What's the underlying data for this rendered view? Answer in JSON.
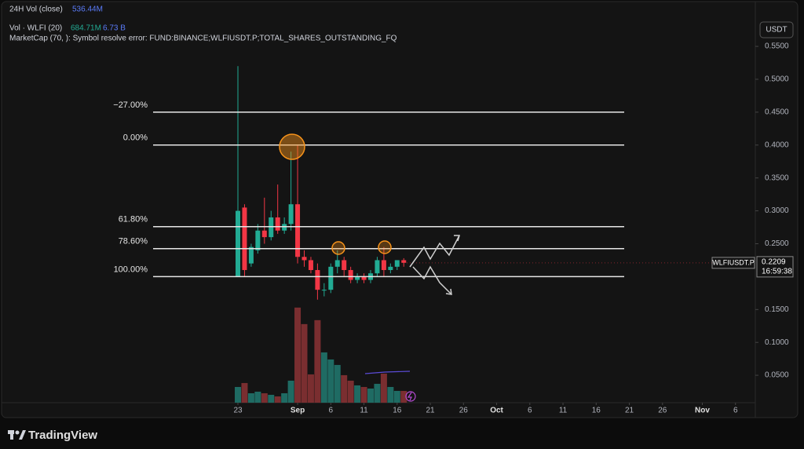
{
  "chart_data": {
    "type": "candlestick",
    "symbol_label": "WLFIUSDT.P",
    "currency_button": "USDT",
    "legend": {
      "vol24_label": "24H Vol (close)",
      "vol24_value": "536.44M",
      "vol_label": "Vol · WLFI (20)",
      "vol_value": "684.71M",
      "vol_ma_value": "6.73 B",
      "marketcap_error": "MarketCap (70, ): Symbol resolve error: FUND:BINANCE;WLFIUSDT.P;TOTAL_SHARES_OUTSTANDING_FQ"
    },
    "brand": "TradingView",
    "last_price": 0.2209,
    "countdown": "16:59:38",
    "x": [
      0,
      1,
      2,
      3,
      4,
      5,
      6,
      7,
      8,
      9,
      10,
      11,
      12,
      13,
      14,
      15,
      16,
      17,
      18,
      19,
      20,
      21,
      22,
      23,
      24,
      25
    ],
    "open": [
      0.2,
      0.305,
      0.22,
      0.24,
      0.27,
      0.26,
      0.29,
      0.27,
      0.28,
      0.31,
      0.23,
      0.225,
      0.21,
      0.18,
      0.18,
      0.215,
      0.225,
      0.21,
      0.195,
      0.2,
      0.195,
      0.205,
      0.225,
      0.21,
      0.215,
      0.225
    ],
    "high": [
      0.52,
      0.31,
      0.25,
      0.28,
      0.32,
      0.3,
      0.34,
      0.29,
      0.39,
      0.4,
      0.24,
      0.23,
      0.22,
      0.19,
      0.22,
      0.24,
      0.23,
      0.215,
      0.205,
      0.205,
      0.21,
      0.23,
      0.245,
      0.22,
      0.225,
      0.228
    ],
    "low": [
      0.2,
      0.2,
      0.215,
      0.235,
      0.25,
      0.255,
      0.265,
      0.265,
      0.27,
      0.22,
      0.215,
      0.205,
      0.165,
      0.17,
      0.175,
      0.205,
      0.2,
      0.19,
      0.19,
      0.19,
      0.19,
      0.2,
      0.2,
      0.205,
      0.21,
      0.215
    ],
    "close": [
      0.3,
      0.21,
      0.245,
      0.27,
      0.26,
      0.29,
      0.27,
      0.28,
      0.31,
      0.23,
      0.225,
      0.21,
      0.18,
      0.18,
      0.215,
      0.225,
      0.21,
      0.195,
      0.2,
      0.195,
      0.205,
      0.225,
      0.21,
      0.215,
      0.225,
      0.221
    ],
    "volume": [
      913,
      1142,
      548,
      639,
      548,
      457,
      365,
      548,
      1279,
      5525,
      4566,
      1644,
      4795,
      2922,
      2511,
      2192,
      1598,
      1279,
      1005,
      913,
      822,
      1096,
      1689,
      913,
      685,
      685
    ],
    "vlim": [
      0,
      5700
    ],
    "up_color": "#22ab94",
    "down_color": "#f23645",
    "vol_up_color": "#1f6b63",
    "vol_down_color": "#7a2e30",
    "xlim": [
      -35.86,
      77.99
    ],
    "xticks": [
      {
        "value": 0,
        "label": "23"
      },
      {
        "value": 9,
        "label": "Sep"
      },
      {
        "value": 14,
        "label": "6"
      },
      {
        "value": 19,
        "label": "11"
      },
      {
        "value": 24,
        "label": "16"
      },
      {
        "value": 29,
        "label": "21"
      },
      {
        "value": 34,
        "label": "26"
      },
      {
        "value": 39,
        "label": "Oct"
      },
      {
        "value": 44,
        "label": "6"
      },
      {
        "value": 49,
        "label": "11"
      },
      {
        "value": 54,
        "label": "16"
      },
      {
        "value": 59,
        "label": "21"
      },
      {
        "value": 64,
        "label": "26"
      },
      {
        "value": 70,
        "label": "Nov"
      },
      {
        "value": 75,
        "label": "6"
      }
    ],
    "ylim": [
      0,
      0.6205
    ],
    "yticks": [
      {
        "value": 0.05,
        "label": "0.0500"
      },
      {
        "value": 0.1,
        "label": "0.1000"
      },
      {
        "value": 0.15,
        "label": "0.1500"
      },
      {
        "value": 0.25,
        "label": "0.2500"
      },
      {
        "value": 0.3,
        "label": "0.3000"
      },
      {
        "value": 0.35,
        "label": "0.3500"
      },
      {
        "value": 0.4,
        "label": "0.4000"
      },
      {
        "value": 0.45,
        "label": "0.4500"
      },
      {
        "value": 0.5,
        "label": "0.5000"
      },
      {
        "value": 0.55,
        "label": "0.5500"
      }
    ],
    "fib_levels": [
      {
        "label": "−27.00%",
        "price": 0.45
      },
      {
        "label": "0.00%",
        "price": 0.4
      },
      {
        "label": "61.80%",
        "price": 0.276
      },
      {
        "label": "78.60%",
        "price": 0.2425
      },
      {
        "label": "100.00%",
        "price": 0.2
      }
    ],
    "grid": false
  }
}
